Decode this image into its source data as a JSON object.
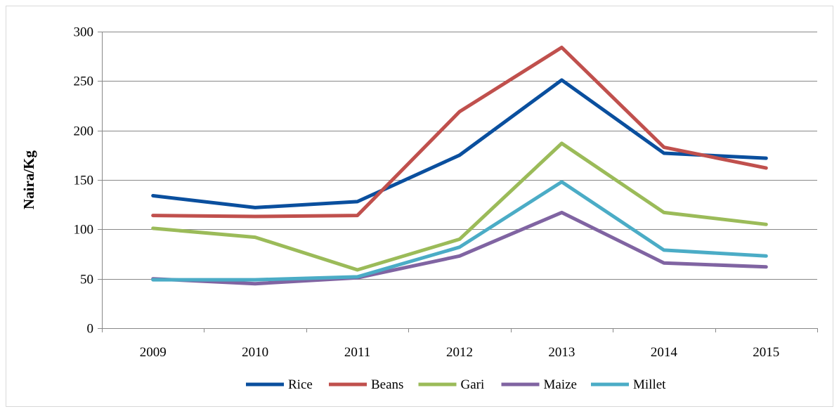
{
  "chart_data": {
    "type": "line",
    "title": "",
    "xlabel": "",
    "ylabel": "Naira/Kg",
    "categories": [
      "2009",
      "2010",
      "2011",
      "2012",
      "2013",
      "2014",
      "2015"
    ],
    "ylim": [
      0,
      300
    ],
    "yticks": [
      0,
      50,
      100,
      150,
      200,
      250,
      300
    ],
    "grid": true,
    "legend_position": "bottom",
    "series": [
      {
        "name": "Rice",
        "color": "#0A4F9E",
        "values": [
          134,
          122,
          128,
          175,
          251,
          177,
          172
        ]
      },
      {
        "name": "Beans",
        "color": "#C0504D",
        "values": [
          114,
          113,
          114,
          219,
          284,
          183,
          162
        ]
      },
      {
        "name": "Gari",
        "color": "#9BBB59",
        "values": [
          101,
          92,
          59,
          90,
          187,
          117,
          105
        ]
      },
      {
        "name": "Maize",
        "color": "#8064A2",
        "values": [
          50,
          45,
          51,
          73,
          117,
          66,
          62
        ]
      },
      {
        "name": "Millet",
        "color": "#4BACC6",
        "values": [
          49,
          49,
          52,
          82,
          148,
          79,
          73
        ]
      }
    ]
  }
}
